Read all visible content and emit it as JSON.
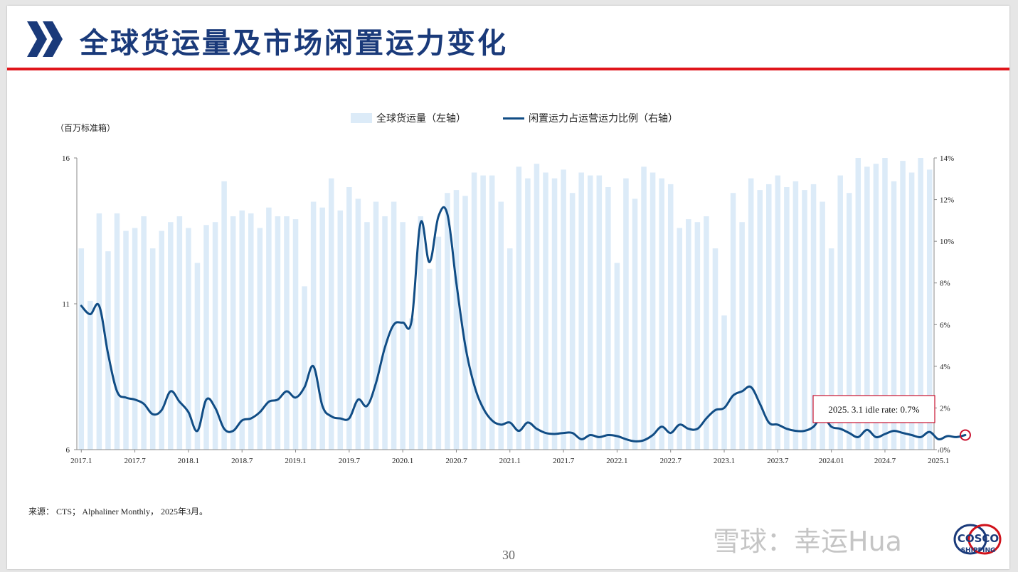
{
  "title": "全球货运量及市场闲置运力变化",
  "unit_label": "（百万标准箱）",
  "legend": {
    "bars": "全球货运量（左轴）",
    "line": "闲置运力占运营运力比例（右轴）"
  },
  "source": "来源： CTS； Alphaliner Monthly， 2025年3月。",
  "page_number": "30",
  "watermark": "雪球：幸运Hua",
  "logo": {
    "line1": "COSCO",
    "line2": "SHIPPING"
  },
  "colors": {
    "title": "#1a3a7a",
    "rule": "#e0151b",
    "bar": "#dcebf8",
    "line": "#114d85",
    "annotation_border": "#c8102e"
  },
  "chart_data": {
    "type": "bar+line",
    "left_axis": {
      "ticks": [
        "6",
        "11",
        "16"
      ],
      "ylim": [
        6,
        16
      ]
    },
    "right_axis": {
      "ticks": [
        "0%",
        "2%",
        "4%",
        "6%",
        "8%",
        "10%",
        "12%",
        "14%"
      ],
      "ylim": [
        0,
        14
      ]
    },
    "x_tick_labels": [
      "2017.1",
      "2017.7",
      "2018.1",
      "2018.7",
      "2019.1",
      "2019.7",
      "2020.1",
      "2020.7",
      "2021.1",
      "2021.7",
      "2022.1",
      "2022.7",
      "2023.1",
      "2023.7",
      "2024.01",
      "2024.7",
      "2025.1"
    ],
    "start_month": "2017.1",
    "series": [
      {
        "name": "全球货运量（左轴）",
        "kind": "bar",
        "values": [
          12.9,
          11.1,
          14.1,
          12.8,
          14.1,
          13.5,
          13.6,
          14.0,
          12.9,
          13.5,
          13.8,
          14.0,
          13.6,
          12.4,
          13.7,
          13.8,
          15.2,
          14.0,
          14.2,
          14.1,
          13.6,
          14.3,
          14.0,
          14.0,
          13.9,
          11.6,
          14.5,
          14.3,
          15.3,
          14.2,
          15.0,
          14.6,
          13.8,
          14.5,
          14.0,
          14.5,
          13.8,
          10.5,
          14.0,
          12.2,
          13.3,
          14.8,
          14.9,
          14.7,
          15.5,
          15.4,
          15.4,
          14.5,
          12.9,
          15.7,
          15.3,
          15.8,
          15.5,
          15.3,
          15.6,
          14.8,
          15.5,
          15.4,
          15.4,
          15.0,
          12.4,
          15.3,
          14.6,
          15.7,
          15.5,
          15.3,
          15.1,
          13.6,
          13.9,
          13.8,
          14.0,
          12.9,
          10.6,
          14.8,
          13.8,
          15.3,
          14.9,
          15.1,
          15.4,
          15.0,
          15.2,
          14.9,
          15.1,
          14.5,
          12.9,
          15.4,
          14.8,
          16.0,
          15.7,
          15.8,
          16.0,
          15.2,
          15.9,
          15.5,
          16.0,
          15.6
        ]
      },
      {
        "name": "闲置运力占运营运力比例（右轴）",
        "kind": "line",
        "values": [
          6.9,
          6.5,
          6.9,
          4.6,
          2.8,
          2.5,
          2.4,
          2.2,
          1.7,
          1.9,
          2.8,
          2.3,
          1.8,
          0.9,
          2.4,
          2.0,
          1.0,
          0.9,
          1.4,
          1.5,
          1.8,
          2.3,
          2.4,
          2.8,
          2.5,
          3.0,
          4.0,
          2.1,
          1.6,
          1.5,
          1.5,
          2.4,
          2.1,
          3.2,
          4.9,
          6.0,
          6.1,
          6.2,
          10.9,
          9.0,
          11.2,
          11.3,
          8.0,
          5.0,
          3.1,
          2.0,
          1.4,
          1.2,
          1.3,
          0.9,
          1.3,
          1.0,
          0.8,
          0.75,
          0.8,
          0.8,
          0.5,
          0.7,
          0.6,
          0.7,
          0.65,
          0.5,
          0.4,
          0.45,
          0.7,
          1.1,
          0.8,
          1.2,
          1.0,
          1.0,
          1.5,
          1.9,
          2.0,
          2.6,
          2.8,
          3.0,
          2.2,
          1.3,
          1.2,
          1.0,
          0.9,
          0.9,
          1.1,
          1.6,
          1.1,
          1.0,
          0.8,
          0.6,
          0.95,
          0.6,
          0.75,
          0.9,
          0.8,
          0.7,
          0.6,
          0.85,
          0.5,
          0.65,
          0.6,
          0.7
        ]
      }
    ],
    "annotation": "2025. 3.1 idle rate: 0.7%"
  }
}
